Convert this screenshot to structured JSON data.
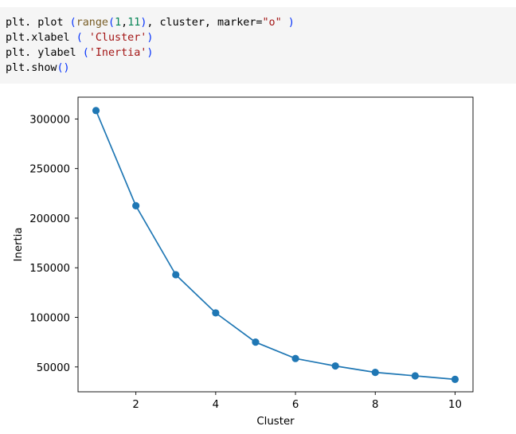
{
  "code_cell": {
    "lines": [
      [
        {
          "text": "plt. plot ",
          "color": "#000000"
        },
        {
          "text": "(",
          "color": "#0431fa"
        },
        {
          "text": "range",
          "color": "#795e26"
        },
        {
          "text": "(",
          "color": "#0431fa"
        },
        {
          "text": "1",
          "color": "#098658"
        },
        {
          "text": ",",
          "color": "#000000"
        },
        {
          "text": "11",
          "color": "#098658"
        },
        {
          "text": ")",
          "color": "#0431fa"
        },
        {
          "text": ", cluster, marker=",
          "color": "#000000"
        },
        {
          "text": "\"o\"",
          "color": "#a31515"
        },
        {
          "text": " ",
          "color": "#000000"
        },
        {
          "text": ")",
          "color": "#0431fa"
        }
      ],
      [
        {
          "text": "plt.xlabel ",
          "color": "#000000"
        },
        {
          "text": "(",
          "color": "#0431fa"
        },
        {
          "text": " ",
          "color": "#000000"
        },
        {
          "text": "'Cluster'",
          "color": "#a31515"
        },
        {
          "text": ")",
          "color": "#0431fa"
        }
      ],
      [
        {
          "text": "plt. ylabel ",
          "color": "#000000"
        },
        {
          "text": "(",
          "color": "#0431fa"
        },
        {
          "text": "'Inertia'",
          "color": "#a31515"
        },
        {
          "text": ")",
          "color": "#0431fa"
        }
      ],
      [
        {
          "text": "plt.show",
          "color": "#000000"
        },
        {
          "text": "()",
          "color": "#0431fa"
        }
      ]
    ]
  },
  "chart_data": {
    "type": "line",
    "marker": "o",
    "color": "#1f77b4",
    "x": [
      1,
      2,
      3,
      4,
      5,
      6,
      7,
      8,
      9,
      10
    ],
    "y": [
      308500,
      212500,
      143000,
      104500,
      75000,
      58500,
      51000,
      44500,
      41000,
      37500
    ],
    "xlabel": "Cluster",
    "ylabel": "Inertia",
    "xlim": [
      0.55,
      10.45
    ],
    "ylim": [
      24950,
      322000
    ],
    "xticks": [
      2,
      4,
      6,
      8,
      10
    ],
    "yticks": [
      50000,
      100000,
      150000,
      200000,
      250000,
      300000
    ],
    "grid": false
  }
}
